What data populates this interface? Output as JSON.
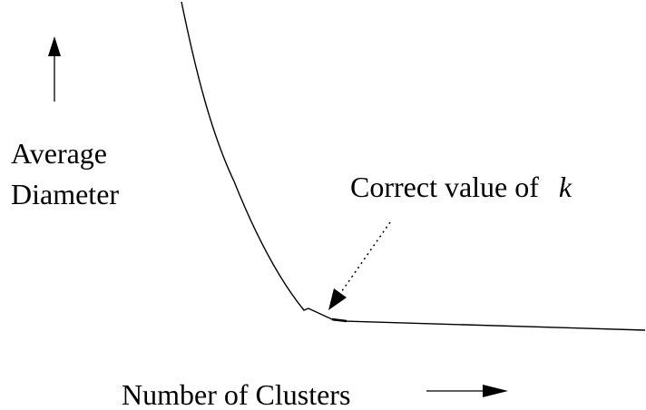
{
  "y_axis": {
    "label_line1": "Average",
    "label_line2": "Diameter"
  },
  "x_axis": {
    "label": "Number of Clusters"
  },
  "annotation": {
    "text": "Correct value of",
    "variable": "k"
  },
  "colors": {
    "ink": "#000000",
    "background": "#ffffff"
  }
}
